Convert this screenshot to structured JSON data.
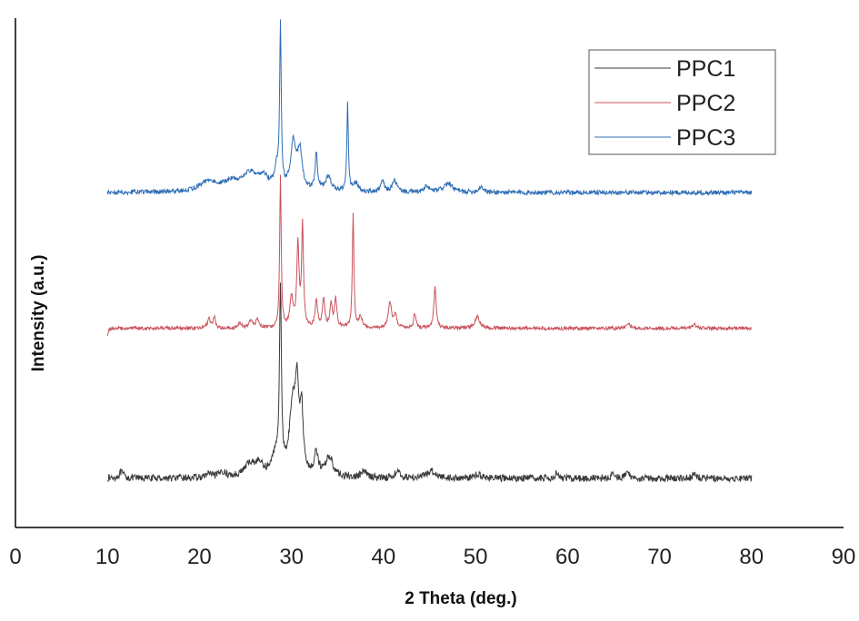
{
  "chart_data": {
    "type": "line",
    "title": "",
    "xlabel": "2 Theta (deg.)",
    "ylabel": "Intensity (a.u.)",
    "xlim": [
      0,
      90
    ],
    "x_ticks": [
      0,
      10,
      20,
      30,
      40,
      50,
      60,
      70,
      80,
      90
    ],
    "y_ticks_shown": false,
    "grid": false,
    "legend_position": "top-right",
    "series": [
      {
        "name": "PPC1",
        "color": "#3a3a3a",
        "baseline": 0.06,
        "noise": 0.012,
        "peaks": [
          {
            "x": 11.5,
            "h": 0.02,
            "w": 0.3
          },
          {
            "x": 21.0,
            "h": 0.015,
            "w": 0.3
          },
          {
            "x": 22.5,
            "h": 0.02,
            "w": 0.4
          },
          {
            "x": 25.5,
            "h": 0.045,
            "w": 0.8
          },
          {
            "x": 26.5,
            "h": 0.035,
            "w": 0.5
          },
          {
            "x": 28.3,
            "h": 0.07,
            "w": 0.5
          },
          {
            "x": 28.8,
            "h": 0.62,
            "w": 0.12
          },
          {
            "x": 30.1,
            "h": 0.22,
            "w": 0.4
          },
          {
            "x": 30.6,
            "h": 0.28,
            "w": 0.25
          },
          {
            "x": 31.1,
            "h": 0.2,
            "w": 0.2
          },
          {
            "x": 32.7,
            "h": 0.08,
            "w": 0.25
          },
          {
            "x": 34.1,
            "h": 0.07,
            "w": 0.5
          },
          {
            "x": 37.9,
            "h": 0.02,
            "w": 0.4
          },
          {
            "x": 41.5,
            "h": 0.02,
            "w": 0.4
          },
          {
            "x": 45.2,
            "h": 0.025,
            "w": 0.6
          },
          {
            "x": 50.3,
            "h": 0.015,
            "w": 0.4
          },
          {
            "x": 58.8,
            "h": 0.02,
            "w": 0.2
          },
          {
            "x": 65.0,
            "h": 0.02,
            "w": 0.2
          },
          {
            "x": 66.5,
            "h": 0.025,
            "w": 0.2
          },
          {
            "x": 73.8,
            "h": 0.02,
            "w": 0.2
          }
        ]
      },
      {
        "name": "PPC2",
        "color": "#c9525c",
        "baseline": 0.58,
        "noise": 0.006,
        "peaks": [
          {
            "x": 10.0,
            "h": -0.025,
            "w": 0.1
          },
          {
            "x": 21.0,
            "h": 0.035,
            "w": 0.15
          },
          {
            "x": 21.6,
            "h": 0.04,
            "w": 0.15
          },
          {
            "x": 24.4,
            "h": 0.02,
            "w": 0.2
          },
          {
            "x": 25.6,
            "h": 0.03,
            "w": 0.2
          },
          {
            "x": 26.3,
            "h": 0.03,
            "w": 0.2
          },
          {
            "x": 28.8,
            "h": 0.52,
            "w": 0.1
          },
          {
            "x": 30.0,
            "h": 0.1,
            "w": 0.2
          },
          {
            "x": 30.7,
            "h": 0.28,
            "w": 0.15
          },
          {
            "x": 31.2,
            "h": 0.35,
            "w": 0.12
          },
          {
            "x": 32.7,
            "h": 0.1,
            "w": 0.15
          },
          {
            "x": 33.5,
            "h": 0.1,
            "w": 0.15
          },
          {
            "x": 34.3,
            "h": 0.08,
            "w": 0.15
          },
          {
            "x": 34.8,
            "h": 0.1,
            "w": 0.15
          },
          {
            "x": 36.7,
            "h": 0.4,
            "w": 0.1
          },
          {
            "x": 37.5,
            "h": 0.04,
            "w": 0.2
          },
          {
            "x": 40.7,
            "h": 0.09,
            "w": 0.2
          },
          {
            "x": 41.3,
            "h": 0.04,
            "w": 0.2
          },
          {
            "x": 43.4,
            "h": 0.05,
            "w": 0.15
          },
          {
            "x": 45.6,
            "h": 0.14,
            "w": 0.15
          },
          {
            "x": 50.2,
            "h": 0.04,
            "w": 0.3
          },
          {
            "x": 66.6,
            "h": 0.02,
            "w": 0.2
          },
          {
            "x": 73.8,
            "h": 0.015,
            "w": 0.2
          }
        ]
      },
      {
        "name": "PPC3",
        "color": "#2f6db5",
        "baseline": 1.05,
        "noise": 0.008,
        "peaks": [
          {
            "x": 21.0,
            "h": 0.035,
            "w": 1.2
          },
          {
            "x": 23.5,
            "h": 0.03,
            "w": 1.0
          },
          {
            "x": 25.5,
            "h": 0.06,
            "w": 1.0
          },
          {
            "x": 27.0,
            "h": 0.04,
            "w": 0.6
          },
          {
            "x": 28.4,
            "h": 0.07,
            "w": 0.3
          },
          {
            "x": 28.8,
            "h": 0.55,
            "w": 0.1
          },
          {
            "x": 30.2,
            "h": 0.16,
            "w": 0.35
          },
          {
            "x": 30.9,
            "h": 0.13,
            "w": 0.3
          },
          {
            "x": 32.7,
            "h": 0.13,
            "w": 0.15
          },
          {
            "x": 34.0,
            "h": 0.05,
            "w": 0.4
          },
          {
            "x": 36.1,
            "h": 0.3,
            "w": 0.1
          },
          {
            "x": 37.0,
            "h": 0.03,
            "w": 0.3
          },
          {
            "x": 39.9,
            "h": 0.04,
            "w": 0.2
          },
          {
            "x": 41.2,
            "h": 0.04,
            "w": 0.3
          },
          {
            "x": 44.7,
            "h": 0.02,
            "w": 0.3
          },
          {
            "x": 47.0,
            "h": 0.03,
            "w": 0.6
          },
          {
            "x": 50.6,
            "h": 0.02,
            "w": 0.3
          }
        ]
      }
    ],
    "x_start": 10,
    "x_end": 80
  }
}
